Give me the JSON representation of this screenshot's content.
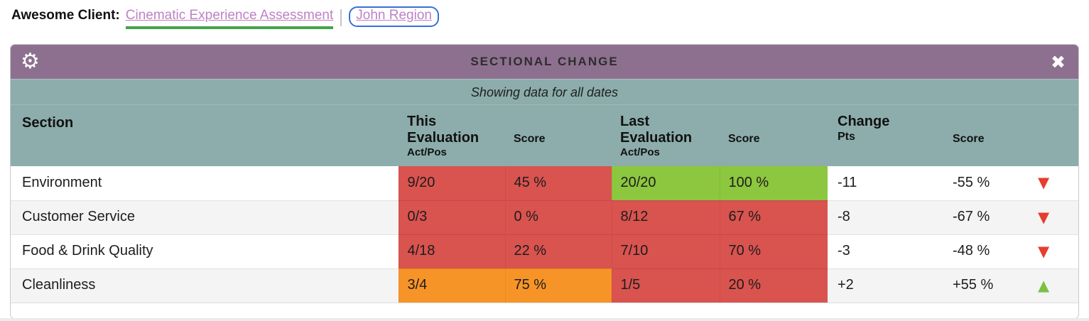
{
  "colors": {
    "red": "#d9534f",
    "green": "#8dc63f",
    "orange": "#f79428",
    "trend_down": "#e53e2e",
    "trend_up": "#7ac142",
    "header_purple": "#8d7090",
    "header_teal": "#8cadab",
    "link_purple": "#bd82c6",
    "link_underline_green": "#44a44a",
    "focus_ring_blue": "#3a6fd8"
  },
  "topbar": {
    "client_label": "Awesome Client:",
    "assessment_link": "Cinematic Experience Assessment",
    "region_link": "John Region"
  },
  "panel": {
    "title": "SECTIONAL CHANGE",
    "subtitle": "Showing data for all dates",
    "gear_icon": "⚙",
    "close_icon": "✖"
  },
  "table": {
    "headers": {
      "section": "Section",
      "this_eval_title": "This Evaluation",
      "this_eval_sub": "Act/Pos",
      "this_score": "Score",
      "last_eval_title": "Last Evaluation",
      "last_eval_sub": "Act/Pos",
      "last_score": "Score",
      "change_title": "Change",
      "change_sub": "Pts",
      "change_score": "Score"
    },
    "rows": [
      {
        "section": "Environment",
        "this_actpos": "9/20",
        "this_actpos_color": "red",
        "this_score": "45 %",
        "this_score_color": "red",
        "last_actpos": "20/20",
        "last_actpos_color": "green",
        "last_score": "100 %",
        "last_score_color": "green",
        "change_pts": "-11",
        "change_score": "-55 %",
        "trend_icon": "▼",
        "trend_color": "trend_down"
      },
      {
        "section": "Customer Service",
        "this_actpos": "0/3",
        "this_actpos_color": "red",
        "this_score": "0 %",
        "this_score_color": "red",
        "last_actpos": "8/12",
        "last_actpos_color": "red",
        "last_score": "67 %",
        "last_score_color": "red",
        "change_pts": "-8",
        "change_score": "-67 %",
        "trend_icon": "▼",
        "trend_color": "trend_down"
      },
      {
        "section": "Food & Drink Quality",
        "this_actpos": "4/18",
        "this_actpos_color": "red",
        "this_score": "22 %",
        "this_score_color": "red",
        "last_actpos": "7/10",
        "last_actpos_color": "red",
        "last_score": "70 %",
        "last_score_color": "red",
        "change_pts": "-3",
        "change_score": "-48 %",
        "trend_icon": "▼",
        "trend_color": "trend_down"
      },
      {
        "section": "Cleanliness",
        "this_actpos": "3/4",
        "this_actpos_color": "orange",
        "this_score": "75 %",
        "this_score_color": "orange",
        "last_actpos": "1/5",
        "last_actpos_color": "red",
        "last_score": "20 %",
        "last_score_color": "red",
        "change_pts": "+2",
        "change_score": "+55 %",
        "trend_icon": "▲",
        "trend_color": "trend_up"
      }
    ]
  }
}
